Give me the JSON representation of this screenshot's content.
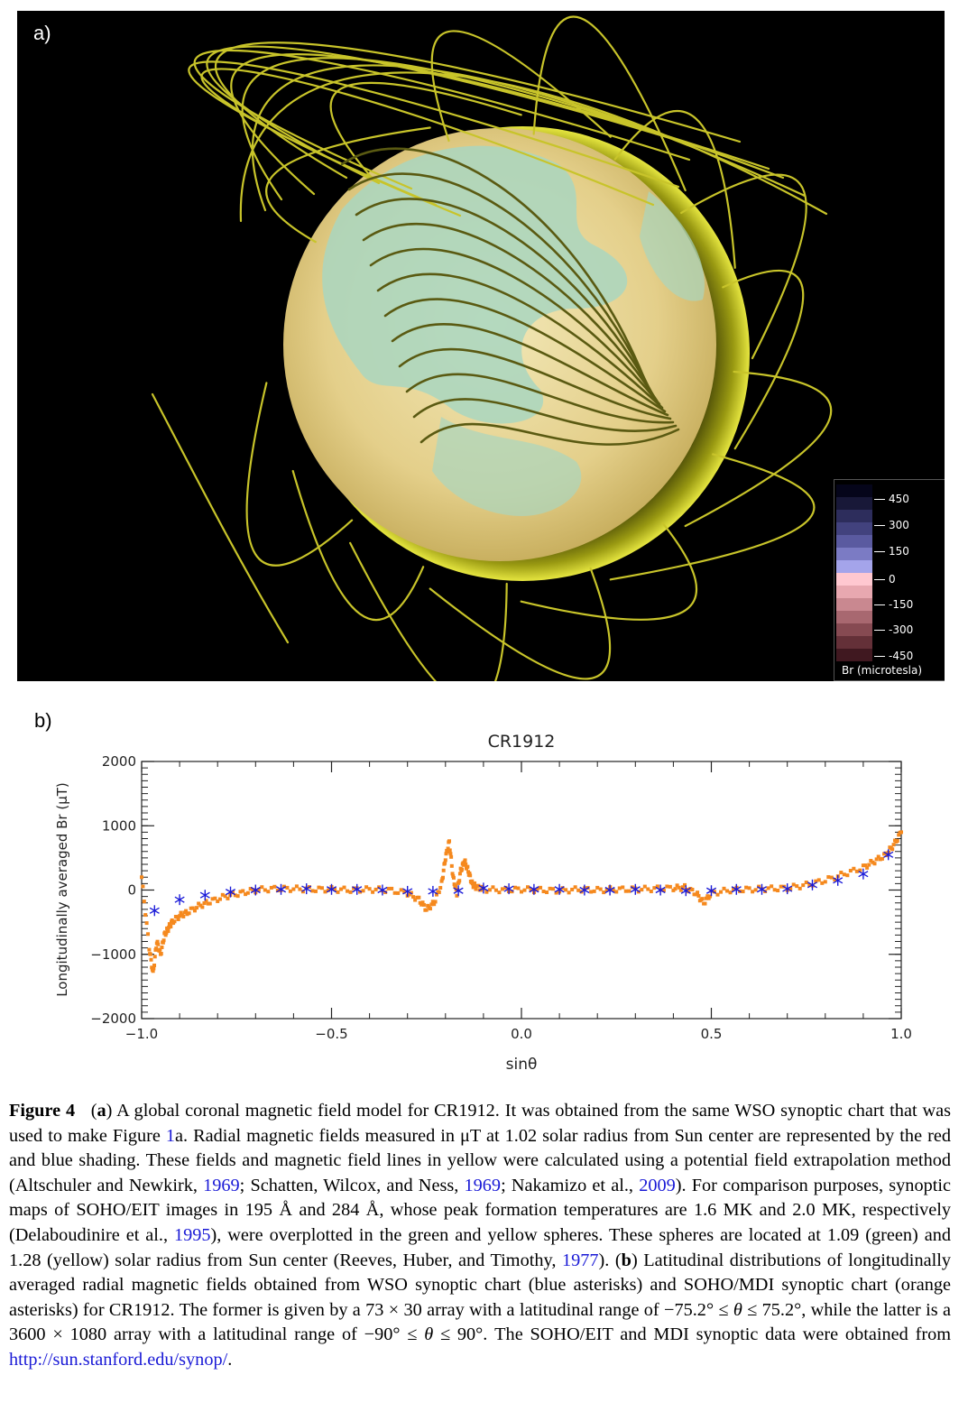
{
  "panel_a": {
    "label": "a)",
    "colorbar": {
      "ticks": [
        "450",
        "300",
        "150",
        "0",
        "-150",
        "-300",
        "-450"
      ],
      "title": "Br (microtesla)",
      "colors": [
        "#05051a",
        "#181838",
        "#2d2d5c",
        "#42427e",
        "#5a5aa0",
        "#7b7bc4",
        "#a4a4ea",
        "#ffc8d0",
        "#e8a8b0",
        "#c98890",
        "#a86870",
        "#864a52",
        "#643038",
        "#401820"
      ]
    },
    "colors": {
      "background": "#000000",
      "field_lines": "#c8c42a",
      "inner_green": "#a8d8b8",
      "inner_yellow": "#e8cc8a",
      "outer_shell": "#cccc22"
    }
  },
  "panel_b": {
    "label": "b)",
    "chart_data": {
      "type": "scatter",
      "title": "CR1912",
      "xlabel": "sinθ",
      "ylabel": "Longitudinally averaged Br (μT)",
      "xlim": [
        -1.0,
        1.0
      ],
      "ylim": [
        -2000,
        2000
      ],
      "xticks": [
        "−1.0",
        "−0.5",
        "0.0",
        "0.5",
        "1.0"
      ],
      "yticks": [
        "2000",
        "1000",
        "0",
        "−1000",
        "−2000"
      ],
      "series": [
        {
          "marker": "asterisk",
          "color": "#1b1bd8",
          "x": [
            -0.966,
            -0.9,
            -0.833,
            -0.766,
            -0.7,
            -0.633,
            -0.566,
            -0.5,
            -0.433,
            -0.366,
            -0.3,
            -0.233,
            -0.166,
            -0.1,
            -0.033,
            0.033,
            0.1,
            0.166,
            0.233,
            0.3,
            0.366,
            0.433,
            0.5,
            0.566,
            0.633,
            0.7,
            0.766,
            0.833,
            0.9,
            0.966
          ],
          "y": [
            -320,
            -150,
            -80,
            -30,
            0,
            10,
            20,
            10,
            10,
            0,
            -20,
            -20,
            -10,
            30,
            20,
            10,
            10,
            0,
            0,
            10,
            0,
            -10,
            -10,
            10,
            10,
            20,
            80,
            150,
            250,
            550
          ]
        },
        {
          "marker": "asterisk",
          "color": "#f5891e",
          "x": [
            -1.0,
            -0.98,
            -0.97,
            -0.96,
            -0.95,
            -0.94,
            -0.93,
            -0.92,
            -0.9,
            -0.88,
            -0.85,
            -0.82,
            -0.78,
            -0.74,
            -0.7,
            -0.65,
            -0.6,
            -0.55,
            -0.5,
            -0.45,
            -0.4,
            -0.35,
            -0.3,
            -0.27,
            -0.25,
            -0.23,
            -0.21,
            -0.2,
            -0.19,
            -0.18,
            -0.17,
            -0.16,
            -0.15,
            -0.14,
            -0.13,
            -0.12,
            -0.1,
            -0.05,
            0.0,
            0.05,
            0.1,
            0.15,
            0.2,
            0.25,
            0.3,
            0.35,
            0.4,
            0.43,
            0.46,
            0.48,
            0.5,
            0.55,
            0.6,
            0.65,
            0.7,
            0.75,
            0.8,
            0.85,
            0.9,
            0.93,
            0.96,
            0.98,
            1.0
          ],
          "y": [
            200,
            -900,
            -1300,
            -800,
            -1000,
            -700,
            -600,
            -500,
            -400,
            -350,
            -250,
            -180,
            -100,
            -50,
            0,
            20,
            20,
            10,
            10,
            0,
            10,
            0,
            -50,
            -150,
            -300,
            -200,
            100,
            500,
            750,
            200,
            -50,
            300,
            450,
            300,
            100,
            50,
            10,
            0,
            10,
            0,
            -10,
            10,
            0,
            10,
            10,
            20,
            30,
            40,
            -50,
            -200,
            -50,
            0,
            10,
            20,
            30,
            80,
            150,
            250,
            350,
            450,
            550,
            700,
            900
          ]
        }
      ]
    }
  },
  "caption": {
    "figure_label": "Figure 4",
    "text_html": "(<b>a</b>) A global coronal magnetic field model for CR1912. It was obtained from the same WSO synoptic chart that was used to make Figure <span class=\"ref\">1</span>a. Radial magnetic fields measured in μT at 1.02 solar radius from Sun center are represented by the red and blue shading. These fields and magnetic field lines in yellow were calculated using a potential field extrapolation method (Altschuler and Newkirk, <span class=\"ref\">1969</span>; Schatten, Wilcox, and Ness, <span class=\"ref\">1969</span>; Nakamizo et al., <span class=\"ref\">2009</span>). For comparison purposes, synoptic maps of SOHO/EIT images in 195 Å and 284 Å, whose peak formation temperatures are 1.6 MK and 2.0 MK, respectively (Delaboudinire et al., <span class=\"ref\">1995</span>), were overplotted in the green and yellow spheres. These spheres are located at 1.09 (green) and 1.28 (yellow) solar radius from Sun center (Reeves, Huber, and Timothy, <span class=\"ref\">1977</span>). (<b>b</b>) Latitudinal distributions of longitudinally averaged radial magnetic fields obtained from WSO synoptic chart (blue asterisks) and SOHO/MDI synoptic chart (orange asterisks) for CR1912. The former is given by a 73 × 30 array with a latitudinal range of −75.2° ≤ <i>θ</i> ≤ 75.2°, while the latter is a 3600 × 1080 array with a latitudinal range of −90° ≤ <i>θ</i> ≤ 90°. The SOHO/EIT and MDI synoptic data were obtained from <a href=\"#\">http://sun.stanford.edu/synop/</a>."
  }
}
